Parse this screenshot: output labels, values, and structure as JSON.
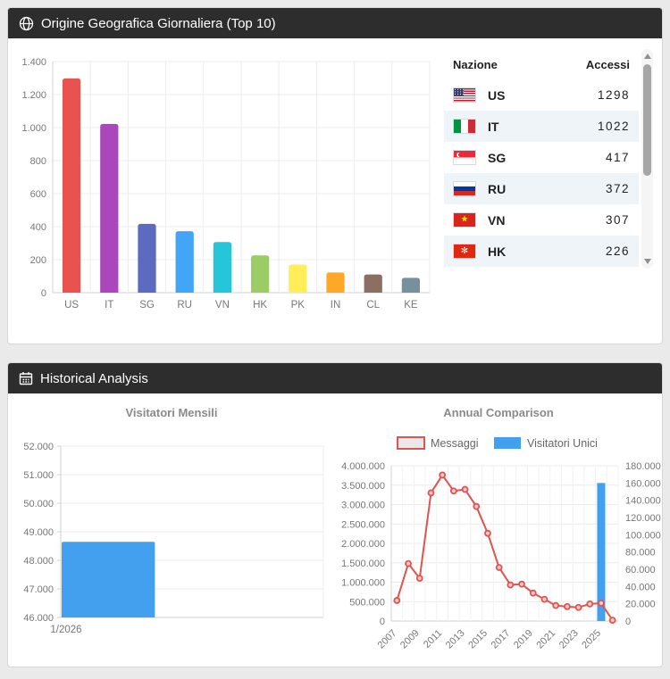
{
  "top_panel": {
    "title": "Origine Geografica Giornaliera (Top 10)",
    "icon": "globe-icon",
    "table": {
      "col_nation": "Nazione",
      "col_accessi": "Accessi",
      "rows": [
        {
          "code": "US",
          "value": "1298"
        },
        {
          "code": "IT",
          "value": "1022"
        },
        {
          "code": "SG",
          "value": "417"
        },
        {
          "code": "RU",
          "value": "372"
        },
        {
          "code": "VN",
          "value": "307"
        },
        {
          "code": "HK",
          "value": "226"
        }
      ]
    }
  },
  "bottom_panel": {
    "title": "Historical Analysis",
    "icon": "calendar-icon",
    "monthly_title": "Visitatori Mensili",
    "annual_title": "Annual Comparison"
  },
  "chart_data": [
    {
      "id": "geo_bar",
      "type": "bar",
      "title": "Origine Geografica Giornaliera (Top 10)",
      "categories": [
        "US",
        "IT",
        "SG",
        "RU",
        "VN",
        "HK",
        "PK",
        "IN",
        "CL",
        "KE"
      ],
      "values": [
        1298,
        1022,
        417,
        372,
        307,
        226,
        170,
        122,
        110,
        90
      ],
      "colors": [
        "#e8534f",
        "#ab47bc",
        "#5c6bc0",
        "#42a5f5",
        "#26c6da",
        "#9ccc65",
        "#ffee58",
        "#ffa726",
        "#8d6e63",
        "#78909c"
      ],
      "xlabel": "",
      "ylabel": "",
      "ylim": [
        0,
        1400
      ],
      "ytick": 200,
      "grid": true,
      "legend": false
    },
    {
      "id": "monthly_bar",
      "type": "bar",
      "title": "Visitatori Mensili",
      "categories": [
        "1/2026"
      ],
      "values": [
        48650
      ],
      "color": "#42a0ee",
      "xlabel": "",
      "ylabel": "",
      "ylim": [
        46000,
        52000
      ],
      "ytick": 1000,
      "grid": true,
      "legend": false,
      "number_format": "thousands-dot"
    },
    {
      "id": "annual_mixed",
      "type": "line",
      "title": "Annual Comparison",
      "x": [
        2007,
        2008,
        2009,
        2010,
        2011,
        2012,
        2013,
        2014,
        2015,
        2016,
        2017,
        2018,
        2019,
        2020,
        2021,
        2022,
        2023,
        2024,
        2025,
        2026
      ],
      "series": [
        {
          "name": "Messaggi",
          "type": "line",
          "axis": "left",
          "color": "#e0534f",
          "fill": "#e8e8e8",
          "values": [
            530000,
            1480000,
            1100000,
            3300000,
            3760000,
            3350000,
            3390000,
            2950000,
            2260000,
            1380000,
            930000,
            950000,
            720000,
            560000,
            400000,
            370000,
            350000,
            440000,
            460000,
            20000
          ]
        },
        {
          "name": "Visitatori Unici",
          "type": "bar",
          "axis": "right",
          "color": "#42a0ee",
          "values": [
            null,
            null,
            null,
            null,
            null,
            null,
            null,
            null,
            null,
            null,
            null,
            null,
            null,
            null,
            null,
            null,
            null,
            null,
            160000,
            null
          ]
        }
      ],
      "left_ylim": [
        0,
        4000000
      ],
      "left_ytick": 500000,
      "right_ylim": [
        0,
        180000
      ],
      "right_ytick": 20000,
      "xtick_labels": [
        "2007",
        "2009",
        "2011",
        "2013",
        "2015",
        "2017",
        "2019",
        "2021",
        "2023",
        "2025"
      ],
      "grid": true,
      "legend_position": "top",
      "number_format": "thousands-dot"
    }
  ]
}
